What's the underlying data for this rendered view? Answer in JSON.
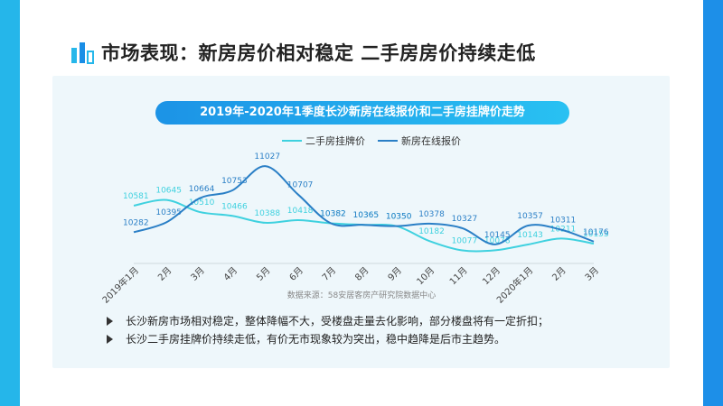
{
  "page": {
    "title": "市场表现：新房房价相对稳定 二手房房价持续走低",
    "chart_title": "2019年-2020年1季度长沙新房在线报价和二手房挂牌价走势",
    "source": "数据来源：58安居客房产研究院数据中心",
    "bullets": [
      "长沙新房市场相对稳定，整体降幅不大，受楼盘走量去化影响，部分楼盘将有一定折扣；",
      "长沙二手房挂牌价持续走低，有价无市现象较为突出，稳中趋降是后市主趋势。"
    ],
    "colors": {
      "left_edge": "#25b6ea",
      "right_edge": "#1d8fe8"
    },
    "logo_icon": "bar-chart-icon"
  },
  "chart_data": {
    "type": "line",
    "categories": [
      "2019年1月",
      "2月",
      "3月",
      "4月",
      "5月",
      "6月",
      "7月",
      "8月",
      "9月",
      "10月",
      "11月",
      "12月",
      "2020年1月",
      "2月",
      "3月"
    ],
    "series": [
      {
        "name": "二手房挂牌价",
        "color": "#3fd1df",
        "values": [
          10581,
          10645,
          10510,
          10466,
          10388,
          10418,
          10382,
          10365,
          10350,
          10182,
          10077,
          10078,
          10143,
          10211,
          10153
        ]
      },
      {
        "name": "新房在线报价",
        "color": "#2a7fc6",
        "values": [
          10282,
          10395,
          10664,
          10753,
          11027,
          10707,
          10382,
          10365,
          10350,
          10378,
          10327,
          10145,
          10357,
          10311,
          10176
        ]
      }
    ],
    "labels": [
      [
        "10581",
        "10645",
        "10510",
        "10466",
        "10388",
        "10418",
        "10382",
        "10365",
        "10350",
        "10182",
        "10077",
        "10078",
        "10143",
        "10211",
        "10153"
      ],
      [
        "10282",
        "10395",
        "10664",
        "10753",
        "11027",
        "10707",
        "10382",
        "10365",
        "10350",
        "10378",
        "10327",
        "10145",
        "10357",
        "10311",
        "10176"
      ]
    ],
    "ylim": [
      9950,
      11150
    ],
    "grid": false,
    "legend_position": "top-center"
  }
}
